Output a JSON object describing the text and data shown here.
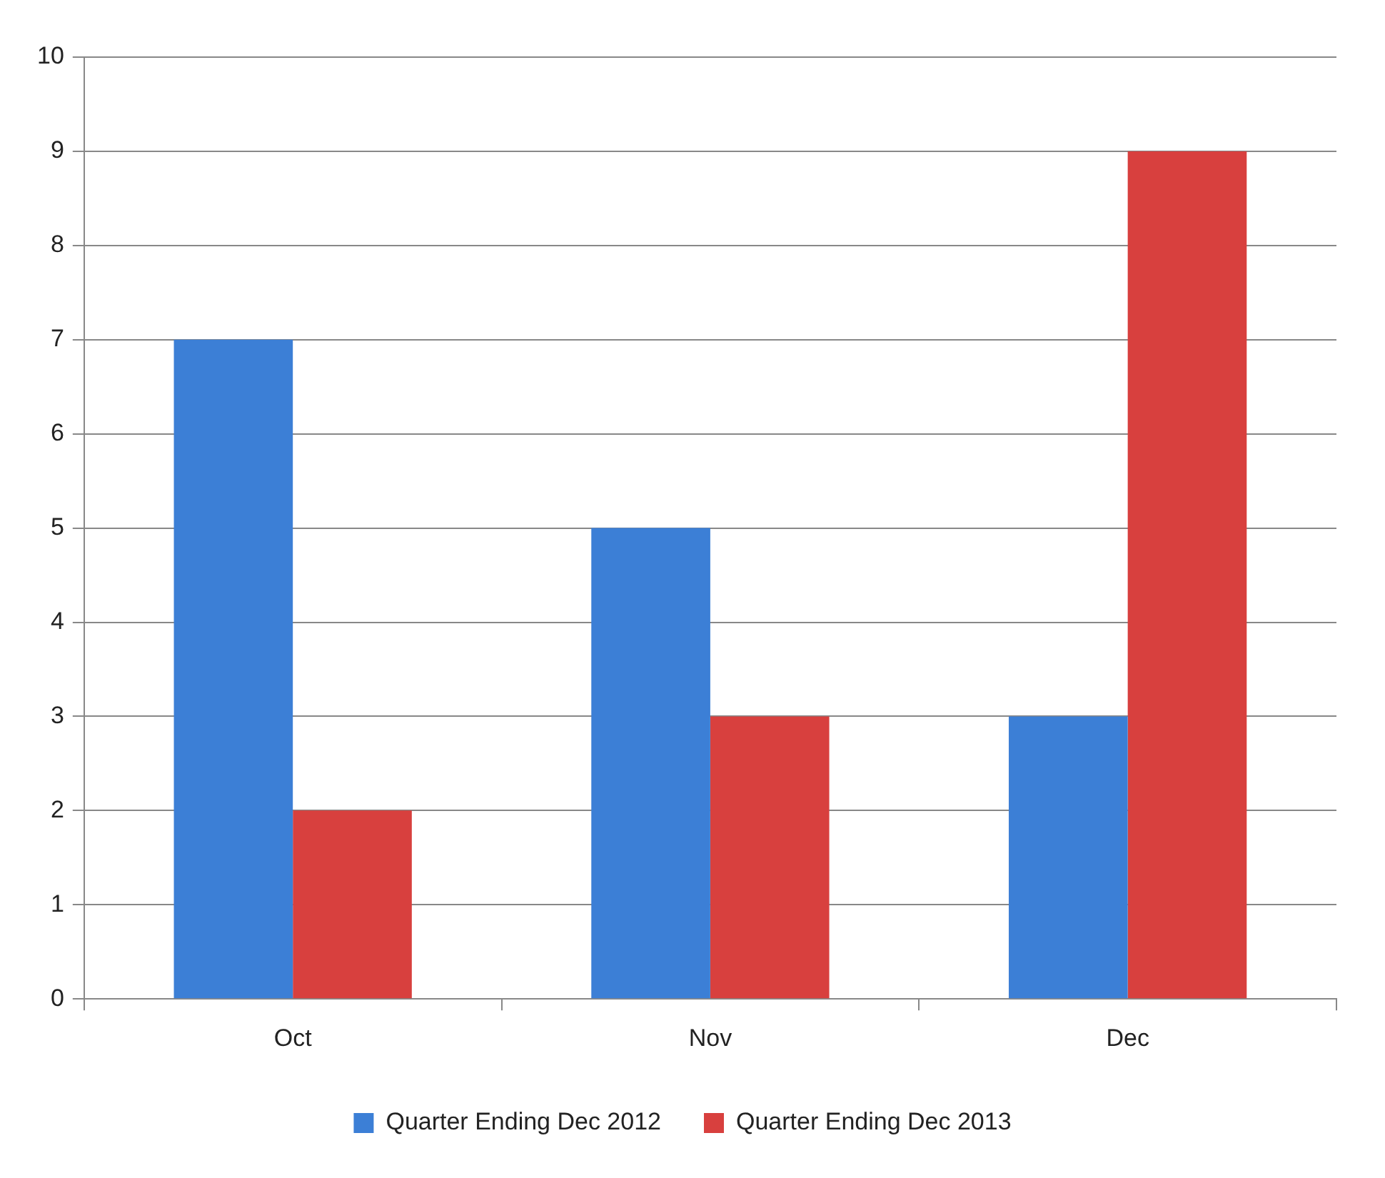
{
  "chart_data": {
    "type": "bar",
    "categories": [
      "Oct",
      "Nov",
      "Dec"
    ],
    "series": [
      {
        "name": "Quarter Ending Dec 2012",
        "color": "#3c7fd6",
        "values": [
          7,
          5,
          3
        ]
      },
      {
        "name": "Quarter Ending Dec 2013",
        "color": "#d8403e",
        "values": [
          2,
          3,
          9
        ]
      }
    ],
    "ylim": [
      0,
      10
    ],
    "yticks": [
      0,
      1,
      2,
      3,
      4,
      5,
      6,
      7,
      8,
      9,
      10
    ],
    "grid": "y",
    "legend": "bottom"
  }
}
